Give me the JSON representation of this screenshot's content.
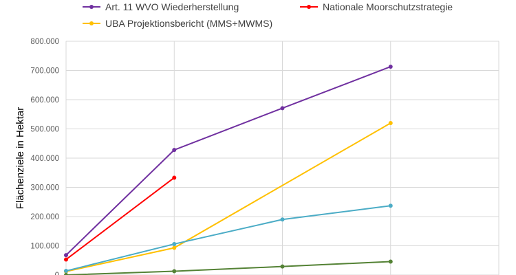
{
  "chart_data": {
    "type": "line",
    "ylabel": "Flächenziele in Hektar",
    "xlabel": "",
    "ylim": [
      0,
      800000
    ],
    "y_ticks": [
      0,
      100000,
      200000,
      300000,
      400000,
      500000,
      600000,
      700000,
      800000
    ],
    "y_tick_labels": [
      "0",
      "100.000",
      "200.000",
      "300.000",
      "400.000",
      "500.000",
      "600.000",
      "700.000",
      "800.000"
    ],
    "x_gridlines": 5,
    "grid": true,
    "legend_position": "top",
    "series": [
      {
        "name": "Art. 11 WVO Wiederherstellung",
        "color": "#7030a0",
        "points": [
          [
            0,
            68000
          ],
          [
            1,
            428000
          ],
          [
            2,
            571000
          ],
          [
            3,
            713000
          ]
        ]
      },
      {
        "name": "Nationale Moorschutzstrategie",
        "color": "#ff0000",
        "points": [
          [
            0,
            53000
          ],
          [
            1,
            333000
          ]
        ]
      },
      {
        "name": "UBA Projektionsbericht (MMS+MWMS)",
        "color": "#ffc000",
        "points": [
          [
            0,
            12000
          ],
          [
            1,
            93000
          ],
          [
            3,
            520000
          ]
        ]
      },
      {
        "name": "",
        "color": "#4bacc6",
        "points": [
          [
            0,
            14000
          ],
          [
            1,
            106000
          ],
          [
            2,
            190000
          ],
          [
            3,
            237000
          ]
        ]
      },
      {
        "name": "",
        "color": "#548235",
        "points": [
          [
            0,
            0
          ],
          [
            1,
            13000
          ],
          [
            2,
            29000
          ],
          [
            3,
            46000
          ]
        ]
      }
    ]
  }
}
